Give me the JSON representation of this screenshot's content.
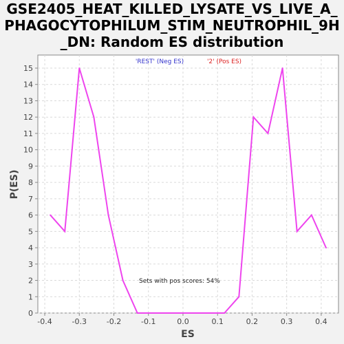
{
  "chart_data": {
    "type": "line",
    "title_lines": [
      "GSE2405_HEAT_KILLED_LYSATE_VS_LIVE_A_",
      "PHAGOCYTOPHILUM_STIM_NEUTROPHIL_9H",
      "_DN: Random ES distribution"
    ],
    "xlabel": "ES",
    "ylabel": "P(ES)",
    "xlim": [
      -0.42,
      0.45
    ],
    "ylim": [
      0,
      15.8
    ],
    "x_ticks": [
      -0.4,
      -0.3,
      -0.2,
      -0.1,
      0.0,
      0.1,
      0.2,
      0.3,
      0.4
    ],
    "x_tick_labels": [
      "-0.4",
      "-0.3",
      "-0.2",
      "-0.1",
      "0.0",
      "0.1",
      "0.2",
      "0.3",
      "0.4"
    ],
    "y_ticks": [
      0,
      1,
      2,
      3,
      4,
      5,
      6,
      7,
      8,
      9,
      10,
      11,
      12,
      13,
      14,
      15
    ],
    "y_tick_labels": [
      "0",
      "1",
      "2",
      "3",
      "4",
      "5",
      "6",
      "7",
      "8",
      "9",
      "10",
      "11",
      "12",
      "13",
      "14",
      "15"
    ],
    "grid": true,
    "legend": [
      {
        "label": "'REST' (Neg ES)",
        "color": "#3333cc"
      },
      {
        "label": "'2' (Pos ES)",
        "color": "#dd2222"
      }
    ],
    "annotation": "Sets with pos scores: 54%",
    "series": [
      {
        "color": "#ee44ee",
        "x": [
          -0.384,
          -0.342,
          -0.3,
          -0.258,
          -0.216,
          -0.174,
          -0.132,
          -0.09,
          -0.048,
          -0.006,
          0.036,
          0.078,
          0.12,
          0.162,
          0.204,
          0.246,
          0.288,
          0.33,
          0.372,
          0.414
        ],
        "y": [
          6,
          5,
          15,
          12,
          6,
          2,
          0,
          0,
          0,
          0,
          0,
          0,
          0,
          1,
          12,
          11,
          15,
          5,
          6,
          4
        ]
      }
    ]
  }
}
